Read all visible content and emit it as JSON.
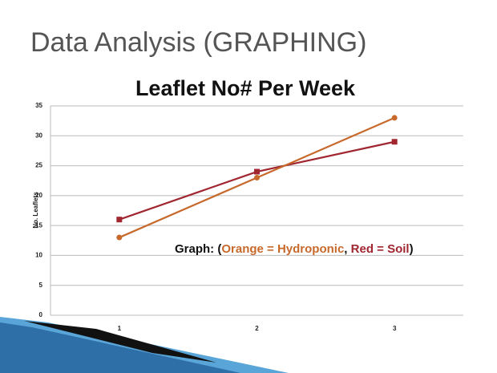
{
  "slide_title": "Data Analysis (GRAPHING)",
  "chart_data": {
    "type": "line",
    "title": "Leaflet No# Per Week",
    "y_label": "No. Leaflets",
    "categories": [
      "1",
      "2",
      "3"
    ],
    "series": [
      {
        "color": "#a0262f",
        "marker": "square",
        "values": [
          16,
          24,
          29
        ]
      },
      {
        "color": "#c8692c",
        "marker": "circle",
        "values": [
          13,
          23,
          33
        ]
      }
    ],
    "ylim": [
      0,
      35
    ],
    "yticks": [
      0,
      5,
      10,
      15,
      20,
      25,
      30,
      35
    ],
    "grid": true,
    "annotation": [
      "Graph:  (",
      "Orange = Hydroponic",
      ", ",
      "Red = Soil",
      ")"
    ]
  }
}
